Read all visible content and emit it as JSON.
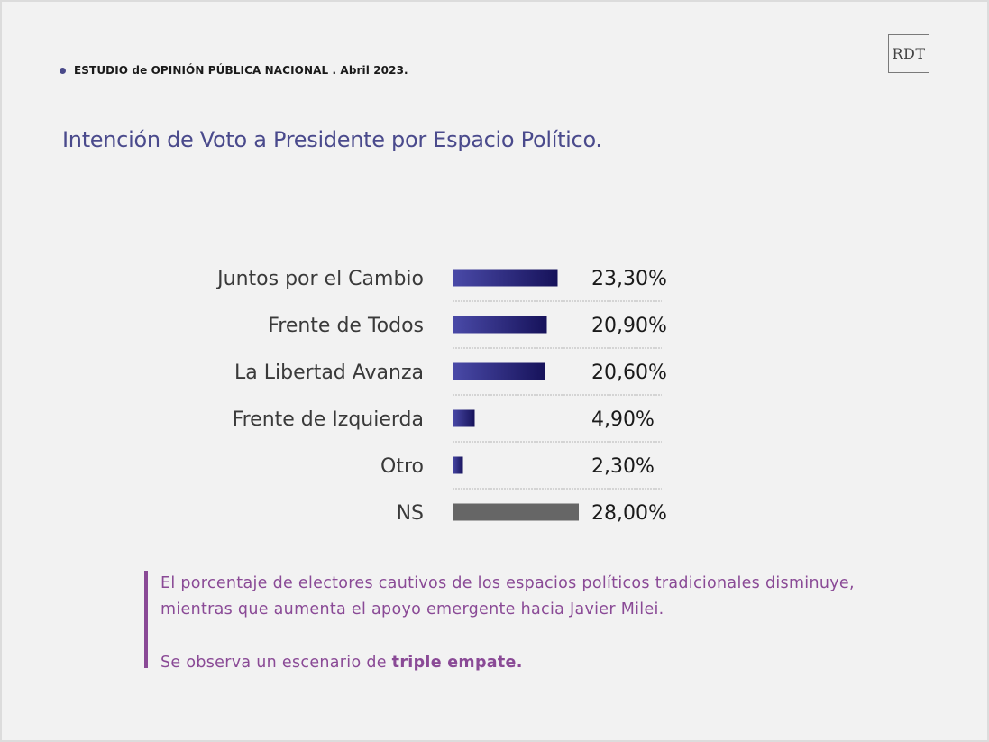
{
  "header": {
    "study": "ESTUDIO de OPINIÓN PÚBLICA NACIONAL . Abril 2023."
  },
  "logo": {
    "text": "RDT"
  },
  "title": "Intención de Voto a Presidente por Espacio Político.",
  "colors": {
    "bar_gradient_start": "#4a4aa8",
    "bar_gradient_end": "#16125a",
    "ns_bar": "#666666",
    "note_accent": "#8a4a96",
    "title": "#4a4a8c"
  },
  "chart_data": {
    "type": "bar",
    "orientation": "horizontal",
    "categories": [
      "Juntos por el Cambio",
      "Frente de Todos",
      "La Libertad Avanza",
      "Frente de Izquierda",
      "Otro",
      "NS"
    ],
    "values": [
      23.3,
      20.9,
      20.6,
      4.9,
      2.3,
      28.0
    ],
    "value_labels": [
      "23,30%",
      "20,90%",
      "20,60%",
      "4,90%",
      "2,30%",
      "28,00%"
    ],
    "unit": "%",
    "grid": false
  },
  "note": {
    "line1": "El porcentaje de electores cautivos de los  espacios políticos tradicionales disminuye,",
    "line2": "mientras que aumenta el apoyo emergente hacia Javier Milei.",
    "line3_prefix": "Se observa un escenario de ",
    "line3_bold": "triple empate."
  }
}
